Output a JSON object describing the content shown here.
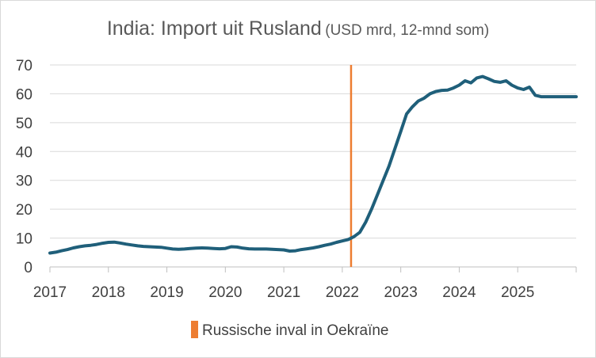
{
  "chart_data": {
    "type": "line",
    "title": "India: Import uit Rusland",
    "subtitle": "(USD mrd, 12-mnd som)",
    "xlabel": "",
    "ylabel": "",
    "ylim": [
      0,
      70
    ],
    "yticks": [
      "0",
      "10",
      "20",
      "30",
      "40",
      "50",
      "60",
      "70"
    ],
    "xlim": [
      2017,
      2026
    ],
    "xticks": [
      "2017",
      "2018",
      "2019",
      "2020",
      "2021",
      "2022",
      "2023",
      "2024",
      "2025"
    ],
    "grid": "horizontal",
    "colors": {
      "line": "#1f5f7a",
      "marker": "#ed7d31",
      "grid": "#d9d9d9",
      "axis": "#bfbfbf"
    },
    "series": [
      {
        "x": [
          2017.0,
          2017.1,
          2017.2,
          2017.3,
          2017.4,
          2017.5,
          2017.6,
          2017.7,
          2017.8,
          2017.9,
          2018.0,
          2018.1,
          2018.2,
          2018.3,
          2018.4,
          2018.5,
          2018.6,
          2018.7,
          2018.8,
          2018.9,
          2019.0,
          2019.1,
          2019.2,
          2019.3,
          2019.4,
          2019.5,
          2019.6,
          2019.7,
          2019.8,
          2019.9,
          2020.0,
          2020.1,
          2020.2,
          2020.3,
          2020.4,
          2020.5,
          2020.6,
          2020.7,
          2020.8,
          2020.9,
          2021.0,
          2021.1,
          2021.2,
          2021.3,
          2021.4,
          2021.5,
          2021.6,
          2021.7,
          2021.8,
          2021.9,
          2022.0,
          2022.1,
          2022.2,
          2022.3,
          2022.4,
          2022.5,
          2022.6,
          2022.7,
          2022.8,
          2022.9,
          2023.0,
          2023.1,
          2023.2,
          2023.3,
          2023.4,
          2023.5,
          2023.6,
          2023.7,
          2023.8,
          2023.9,
          2024.0,
          2024.1,
          2024.2,
          2024.3,
          2024.4,
          2024.5,
          2024.6,
          2024.7,
          2024.8,
          2024.9,
          2025.0,
          2025.1,
          2025.2,
          2025.3,
          2025.4,
          2025.5,
          2025.6,
          2025.7,
          2025.8,
          2025.9,
          2026.0
        ],
        "values": [
          4.8,
          5.1,
          5.6,
          6.0,
          6.6,
          7.0,
          7.3,
          7.5,
          7.8,
          8.2,
          8.5,
          8.6,
          8.3,
          7.9,
          7.6,
          7.3,
          7.1,
          7.0,
          6.9,
          6.8,
          6.5,
          6.2,
          6.1,
          6.2,
          6.4,
          6.5,
          6.6,
          6.5,
          6.4,
          6.3,
          6.4,
          7.0,
          6.9,
          6.5,
          6.3,
          6.2,
          6.2,
          6.2,
          6.1,
          6.0,
          5.9,
          5.5,
          5.6,
          6.0,
          6.3,
          6.6,
          7.0,
          7.5,
          7.9,
          8.5,
          9.0,
          9.5,
          10.5,
          12.0,
          15.5,
          20.0,
          25.0,
          30.0,
          35.0,
          41.0,
          47.0,
          53.0,
          55.5,
          57.5,
          58.5,
          60.0,
          60.8,
          61.2,
          61.3,
          62.0,
          63.0,
          64.5,
          63.8,
          65.5,
          66.0,
          65.2,
          64.3,
          64.0,
          64.5,
          63.0,
          62.0,
          61.5,
          62.3,
          59.5,
          59.0,
          59.0,
          59.0,
          59.0,
          59.0,
          59.0,
          59.0
        ]
      }
    ],
    "marker": {
      "x": 2022.15,
      "label": "Russische inval in Oekraïne"
    }
  }
}
